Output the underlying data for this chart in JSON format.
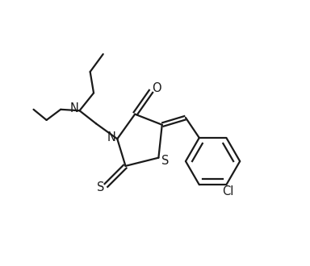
{
  "background_color": "#ffffff",
  "line_color": "#1a1a1a",
  "line_width": 1.6,
  "label_fontsize": 10.5,
  "fig_width": 3.84,
  "fig_height": 3.3,
  "dpi": 100,
  "xlim": [
    -0.05,
    1.08
  ],
  "ylim": [
    0.0,
    1.12
  ]
}
